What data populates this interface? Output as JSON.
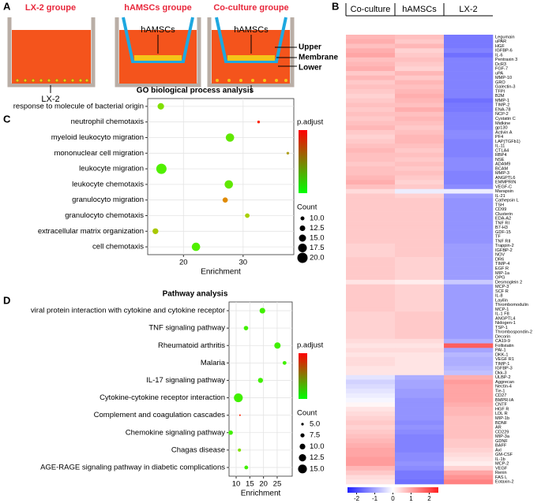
{
  "panel_labels": [
    "A",
    "B",
    "C",
    "D"
  ],
  "diagram": {
    "groups": [
      "LX-2 groupe",
      "hAMSCs groupe",
      "Co-culture groupe"
    ],
    "labels": {
      "hamscs": "hAMSCs",
      "lx2": "LX-2",
      "upper": "Upper",
      "membrane": "Membrane",
      "lower": "Lower"
    }
  },
  "chart_data": [
    {
      "type": "heatmap",
      "column_groups": [
        "Co-culture",
        "hAMSCs",
        "LX-2"
      ],
      "rows": [
        "Legumain",
        "uPAR",
        "HGF",
        "IGFBP-6",
        "IL-6",
        "Pentraxin 3",
        "DcR3",
        "FGF-7",
        "uPA",
        "MMP-10",
        "GRO",
        "Galectin-3",
        "TFPI",
        "B2M",
        "MMP-1",
        "TIMP-2",
        "ENA-78",
        "NCP-2",
        "Cystatin C",
        "Midkine",
        "gp130",
        "Activin A",
        "PF4",
        "LAP(TGFb1)",
        "IL-11",
        "CTLA4",
        "RBP4",
        "NSE",
        "ADAM9",
        "BCAM",
        "MMP-3",
        "ANGPTL6",
        "EMMPRIN",
        "VEGF-C",
        "Marapsin",
        "IL-21",
        "Cathepsin L",
        "TSH",
        "CD99",
        "Clusterin",
        "EDA-A2",
        "TNF RI",
        "B7-H3",
        "GDF-15",
        "TF",
        "TNF RII",
        "Trappin-2",
        "IGFBP-2",
        "NOV",
        "DR6",
        "TIMP-4",
        "EGF R",
        "MIP-1a",
        "OPG",
        "Desmoglein 2",
        "MCP-3",
        "SCF R",
        "IL-8",
        "Layilin",
        "Thrombomodulin",
        "MCP-1",
        "IL-1 F8",
        "ANGPTL4",
        "Nidogen-1",
        "TSP-1",
        "Thrombospondin-2",
        "Decorin",
        "CA19-9",
        "Follistatin",
        "PAI-1",
        "DKK-1",
        "VEGF R1",
        "TIMP-1",
        "IGFBP-3",
        "Dkk-3",
        "ULBP-2",
        "Aggrecan",
        "Nectin-4",
        "Tie-1",
        "CD27",
        "BMPR-IA",
        "CNTF",
        "HGF R",
        "LDL R",
        "MIP-1b",
        "BDNF",
        "AR",
        "CD229",
        "MIP-3a",
        "GDNF",
        "BAFF",
        "Axl",
        "GM-CSF",
        "IL-1b",
        "MCP-2",
        "VEGF",
        "Renin",
        "FAS L",
        "Eotaxin-2"
      ],
      "values": [
        [
          0.8,
          0.7,
          -1.5
        ],
        [
          0.9,
          0.6,
          -1.5
        ],
        [
          0.7,
          0.8,
          -1.5
        ],
        [
          0.9,
          0.5,
          -1.4
        ],
        [
          1.0,
          0.6,
          -1.6
        ],
        [
          0.7,
          0.7,
          -1.4
        ],
        [
          0.8,
          0.6,
          -1.4
        ],
        [
          0.9,
          0.5,
          -1.4
        ],
        [
          0.6,
          0.8,
          -1.4
        ],
        [
          0.8,
          0.6,
          -1.4
        ],
        [
          0.6,
          0.8,
          -1.4
        ],
        [
          0.7,
          0.7,
          -1.4
        ],
        [
          0.6,
          0.8,
          -1.4
        ],
        [
          0.5,
          0.9,
          -1.4
        ],
        [
          0.6,
          0.8,
          -1.6
        ],
        [
          0.7,
          0.7,
          -1.5
        ],
        [
          0.6,
          0.9,
          -1.5
        ],
        [
          0.7,
          0.7,
          -1.4
        ],
        [
          0.6,
          0.8,
          -1.4
        ],
        [
          0.7,
          0.7,
          -1.4
        ],
        [
          0.8,
          0.6,
          -1.4
        ],
        [
          0.6,
          0.7,
          -1.3
        ],
        [
          0.5,
          0.8,
          -1.3
        ],
        [
          0.6,
          0.8,
          -1.4
        ],
        [
          0.7,
          0.7,
          -1.4
        ],
        [
          0.8,
          0.6,
          -1.4
        ],
        [
          0.7,
          0.7,
          -1.4
        ],
        [
          0.7,
          0.6,
          -1.3
        ],
        [
          0.6,
          0.7,
          -1.3
        ],
        [
          0.7,
          0.6,
          -1.3
        ],
        [
          0.7,
          0.7,
          -1.4
        ],
        [
          0.8,
          0.6,
          -1.4
        ],
        [
          0.9,
          0.5,
          -1.4
        ],
        [
          0.7,
          0.6,
          -1.3
        ],
        [
          0.4,
          -0.2,
          -0.2
        ],
        [
          0.6,
          0.5,
          -1.1
        ],
        [
          0.6,
          0.6,
          -1.2
        ],
        [
          0.6,
          0.6,
          -1.2
        ],
        [
          0.6,
          0.6,
          -1.2
        ],
        [
          0.6,
          0.6,
          -1.2
        ],
        [
          0.6,
          0.6,
          -1.2
        ],
        [
          0.6,
          0.6,
          -1.2
        ],
        [
          0.6,
          0.6,
          -1.2
        ],
        [
          0.6,
          0.6,
          -1.2
        ],
        [
          0.6,
          0.6,
          -1.2
        ],
        [
          0.6,
          0.6,
          -1.2
        ],
        [
          0.5,
          0.6,
          -1.1
        ],
        [
          0.5,
          0.6,
          -1.1
        ],
        [
          0.5,
          0.6,
          -1.1
        ],
        [
          0.6,
          0.5,
          -1.1
        ],
        [
          0.6,
          0.5,
          -1.1
        ],
        [
          0.6,
          0.5,
          -1.1
        ],
        [
          0.6,
          0.5,
          -1.1
        ],
        [
          0.6,
          0.5,
          -1.1
        ],
        [
          0.3,
          0.2,
          -0.6
        ],
        [
          0.6,
          0.5,
          -1.1
        ],
        [
          0.6,
          0.5,
          -1.1
        ],
        [
          0.6,
          0.5,
          -1.1
        ],
        [
          0.6,
          0.5,
          -1.1
        ],
        [
          0.6,
          0.5,
          -1.1
        ],
        [
          0.6,
          0.5,
          -1.1
        ],
        [
          0.5,
          0.6,
          -1.1
        ],
        [
          0.5,
          0.6,
          -1.1
        ],
        [
          0.5,
          0.6,
          -1.1
        ],
        [
          0.5,
          0.6,
          -1.1
        ],
        [
          0.5,
          0.6,
          -1.1
        ],
        [
          0.5,
          0.6,
          -1.1
        ],
        [
          0.4,
          0.4,
          -0.9
        ],
        [
          0.3,
          0.3,
          1.8
        ],
        [
          0.4,
          0.4,
          -1.0
        ],
        [
          0.3,
          0.3,
          -0.8
        ],
        [
          0.4,
          0.3,
          -0.9
        ],
        [
          0.4,
          0.3,
          -0.9
        ],
        [
          0.3,
          0.3,
          -0.8
        ],
        [
          0.3,
          0.3,
          -0.7
        ],
        [
          -0.3,
          -0.9,
          0.9
        ],
        [
          -0.5,
          -1.0,
          1.1
        ],
        [
          -0.4,
          -1.0,
          1.0
        ],
        [
          -0.3,
          -1.1,
          1.0
        ],
        [
          -0.2,
          -1.1,
          1.0
        ],
        [
          -0.1,
          -1.2,
          1.0
        ],
        [
          0.1,
          -1.2,
          0.9
        ],
        [
          0.3,
          -1.2,
          0.8
        ],
        [
          0.4,
          -1.2,
          0.8
        ],
        [
          0.5,
          -1.2,
          0.7
        ],
        [
          0.6,
          -1.3,
          0.7
        ],
        [
          0.5,
          -1.2,
          0.7
        ],
        [
          0.6,
          -1.3,
          0.7
        ],
        [
          0.7,
          -1.4,
          0.7
        ],
        [
          0.8,
          -1.4,
          0.6
        ],
        [
          0.9,
          -1.4,
          0.6
        ],
        [
          1.0,
          -1.4,
          0.5
        ],
        [
          1.0,
          -1.3,
          0.4
        ],
        [
          1.1,
          -1.3,
          0.3
        ],
        [
          1.1,
          -1.2,
          0.2
        ],
        [
          0.8,
          -1.3,
          0.5
        ],
        [
          0.6,
          -1.5,
          1.0
        ],
        [
          0.4,
          -1.5,
          1.2
        ],
        [
          0.3,
          -1.6,
          1.4
        ]
      ],
      "zlim": [
        -2.5,
        2.5
      ],
      "zticks": [
        -2,
        -1,
        0,
        1,
        2
      ],
      "colors": [
        "#1f1fff",
        "#ffffff",
        "#ff1f1f"
      ]
    },
    {
      "type": "dot",
      "title": "GO biological process analysis",
      "xlabel": "Enrichment",
      "categories": [
        "response to molecule of bacterial origin",
        "neutrophil chemotaxis",
        "myeloid leukocyto migration",
        "mononuclear cell migration",
        "leukocyte migration",
        "leukocyte chemotaxis",
        "granulocyto migration",
        "granulocyto chemotaxis",
        "extracellular matrix organization",
        "cell chemotaxis"
      ],
      "values": [
        16.2,
        32.6,
        27.8,
        37.5,
        16.3,
        27.6,
        27.0,
        30.7,
        15.3,
        22.1
      ],
      "sizes": [
        14,
        8,
        17,
        8,
        20,
        17,
        12,
        11,
        13,
        17
      ],
      "colors": [
        "#80e000",
        "#ff2000",
        "#60e800",
        "#b0a020",
        "#50f000",
        "#60e800",
        "#e08a00",
        "#a8d000",
        "#a8c800",
        "#50f000"
      ],
      "xlim": [
        14,
        38.5
      ],
      "xticks": [
        20,
        30
      ],
      "color_legend": {
        "title": "p.adjust",
        "colors": [
          "#ff0000",
          "#00ff00"
        ]
      },
      "size_legend": {
        "title": "Count",
        "values": [
          {
            "value": 10,
            "label": "10.0"
          },
          12.5,
          {
            "value": 15,
            "label": "15.0"
          },
          17.5,
          {
            "value": 20,
            "label": "20.0"
          }
        ]
      }
    },
    {
      "type": "dot",
      "title": "Pathway analysis",
      "xlabel": "Enrichment",
      "categories": [
        "viral protein interaction with cytokine and cytokine receptor",
        "TNF signaling pathway",
        "Rheumatoid arthritis",
        "Malaria",
        "IL-17 signaling pathway",
        "Cytokine-cytokine receptor interaction",
        "Complement and coagulation cascades",
        "Chemokine signaling pathway",
        "Chagas disease",
        "AGE-RAGE signaling pathway in diabetic complications"
      ],
      "values": [
        19.6,
        13.6,
        25.1,
        27.7,
        18.9,
        10.8,
        11.4,
        8.0,
        11.2,
        13.7
      ],
      "sizes": [
        10,
        8,
        11,
        7,
        9,
        15,
        3,
        8,
        6,
        7
      ],
      "colors": [
        "#40f000",
        "#40f000",
        "#40f000",
        "#40f000",
        "#40f000",
        "#40f000",
        "#ff2000",
        "#40f000",
        "#80e000",
        "#40f000"
      ],
      "xlim": [
        7.4,
        30.5
      ],
      "xticks": [
        10,
        15,
        20,
        25
      ],
      "color_legend": {
        "title": "p.adjust",
        "colors": [
          "#ff0000",
          "#00ff00"
        ]
      },
      "size_legend": {
        "title": "Count",
        "values": [
          {
            "value": 5,
            "label": "5.0"
          },
          7.5,
          {
            "value": 10,
            "label": "10.0"
          },
          12.5,
          {
            "value": 15,
            "label": "15.0"
          }
        ]
      }
    }
  ]
}
